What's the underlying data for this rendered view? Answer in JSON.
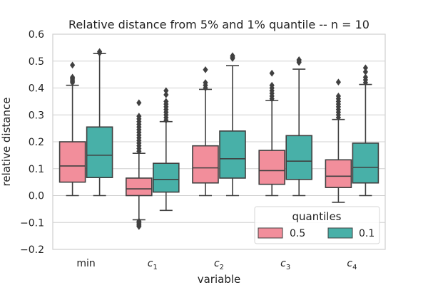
{
  "chart_data": {
    "type": "box",
    "title": "Relative distance from 5% and 1% quantile -- n = 10",
    "xlabel": "variable",
    "ylabel": "relative distance",
    "ylim": [
      -0.2,
      0.6
    ],
    "yticks": [
      -0.2,
      -0.1,
      0.0,
      0.1,
      0.2,
      0.3,
      0.4,
      0.5,
      0.6
    ],
    "ytick_labels": [
      "−0.2",
      "−0.1",
      "0.0",
      "0.1",
      "0.2",
      "0.3",
      "0.4",
      "0.5",
      "0.6"
    ],
    "categories": [
      {
        "base": "min",
        "sub": ""
      },
      {
        "base": "c",
        "sub": "1"
      },
      {
        "base": "c",
        "sub": "2"
      },
      {
        "base": "c",
        "sub": "3"
      },
      {
        "base": "c",
        "sub": "4"
      }
    ],
    "legend": {
      "title": "quantiles",
      "position": "lower-right",
      "entries": [
        {
          "label": "0.5",
          "color": "#f28e9b"
        },
        {
          "label": "0.1",
          "color": "#48b0a8"
        }
      ]
    },
    "series": [
      {
        "name": "0.5",
        "color": "#f28e9b",
        "boxes": [
          {
            "whislo": 0.0,
            "q1": 0.05,
            "med": 0.11,
            "q3": 0.2,
            "whishi": 0.41,
            "fliers": [
              0.42,
              0.425,
              0.43,
              0.435,
              0.44,
              0.485
            ]
          },
          {
            "whislo": -0.09,
            "q1": 0.0,
            "med": 0.025,
            "q3": 0.065,
            "whishi": 0.157,
            "fliers": [
              0.165,
              0.175,
              0.185,
              0.195,
              0.205,
              0.215,
              0.225,
              0.235,
              0.245,
              0.255,
              0.265,
              0.275,
              0.285,
              0.295,
              0.345,
              -0.095,
              -0.1,
              -0.105,
              -0.11,
              -0.115
            ]
          },
          {
            "whislo": 0.0,
            "q1": 0.047,
            "med": 0.103,
            "q3": 0.185,
            "whishi": 0.395,
            "fliers": [
              0.4,
              0.41,
              0.42,
              0.468
            ]
          },
          {
            "whislo": 0.0,
            "q1": 0.042,
            "med": 0.093,
            "q3": 0.168,
            "whishi": 0.353,
            "fliers": [
              0.36,
              0.37,
              0.38,
              0.39,
              0.4,
              0.41,
              0.455
            ]
          },
          {
            "whislo": -0.025,
            "q1": 0.03,
            "med": 0.072,
            "q3": 0.133,
            "whishi": 0.283,
            "fliers": [
              0.29,
              0.3,
              0.31,
              0.32,
              0.33,
              0.34,
              0.35,
              0.36,
              0.37,
              0.422
            ]
          }
        ]
      },
      {
        "name": "0.1",
        "color": "#48b0a8",
        "boxes": [
          {
            "whislo": 0.0,
            "q1": 0.067,
            "med": 0.15,
            "q3": 0.255,
            "whishi": 0.528,
            "fliers": [
              0.53,
              0.535
            ]
          },
          {
            "whislo": -0.055,
            "q1": 0.013,
            "med": 0.06,
            "q3": 0.12,
            "whishi": 0.275,
            "fliers": [
              0.28,
              0.29,
              0.3,
              0.31,
              0.32,
              0.33,
              0.34,
              0.35,
              0.375,
              0.39
            ]
          },
          {
            "whislo": 0.0,
            "q1": 0.065,
            "med": 0.137,
            "q3": 0.24,
            "whishi": 0.483,
            "fliers": [
              0.51,
              0.515,
              0.52
            ]
          },
          {
            "whislo": 0.0,
            "q1": 0.06,
            "med": 0.128,
            "q3": 0.223,
            "whishi": 0.47,
            "fliers": [
              0.495,
              0.5,
              0.505
            ]
          },
          {
            "whislo": 0.0,
            "q1": 0.047,
            "med": 0.105,
            "q3": 0.195,
            "whishi": 0.413,
            "fliers": [
              0.42,
              0.43,
              0.44,
              0.46,
              0.475
            ]
          }
        ]
      }
    ]
  }
}
